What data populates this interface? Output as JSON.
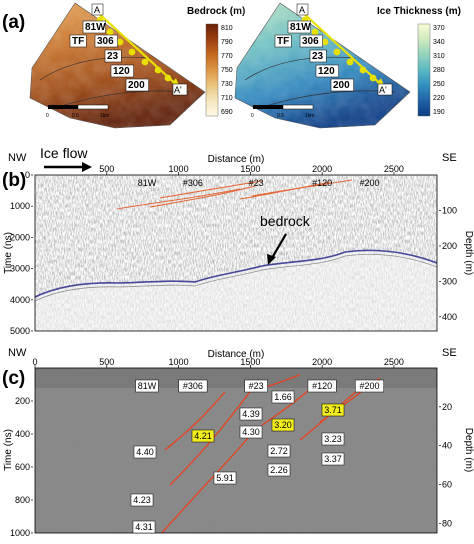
{
  "panel_a": {
    "label": "(a)",
    "map_labels": {
      "top": "A",
      "bottom": "A'"
    },
    "site_labels": [
      "81W",
      "TF",
      "306",
      "23",
      "120",
      "200"
    ],
    "scalebar": {
      "ticks": [
        "0",
        "0.5",
        "1km"
      ]
    },
    "bedrock": {
      "title": "Bedrock (m)",
      "ticks": [
        "810",
        "790",
        "770",
        "750",
        "730",
        "710",
        "690"
      ],
      "colors": [
        "#6b2208",
        "#9b3f12",
        "#c46a1f",
        "#dc9844",
        "#e9c57f",
        "#f5e7bf",
        "#fff8e6"
      ]
    },
    "ice": {
      "title": "Ice Thickness (m)",
      "ticks": [
        "370",
        "340",
        "310",
        "280",
        "250",
        "220",
        "190"
      ],
      "colors": [
        "#f8fbd8",
        "#cfeac0",
        "#94d3bd",
        "#5ab9c2",
        "#3190c0",
        "#1f63a6",
        "#0d3d82"
      ]
    }
  },
  "panel_b": {
    "label": "(b)",
    "nw": "NW",
    "se": "SE",
    "ice_flow": "Ice flow",
    "xlabel": "Distance (m)",
    "x_ticks": [
      "500",
      "1000",
      "1500",
      "2000",
      "2500"
    ],
    "ylabel": "Time (ns)",
    "y_ticks": [
      "0",
      "1000",
      "2000",
      "3000",
      "4000",
      "5000"
    ],
    "y2label": "Depth (m)",
    "y2_ticks": [
      "100",
      "200",
      "300",
      "400"
    ],
    "sites": [
      "81W",
      "#306",
      "#23",
      "#120",
      "#200"
    ],
    "bedrock_label": "bedrock"
  },
  "panel_c": {
    "label": "(c)",
    "nw": "NW",
    "se": "SE",
    "xlabel": "Distance (m)",
    "x_ticks": [
      "0",
      "500",
      "1000",
      "1500",
      "2000",
      "2500"
    ],
    "ylabel": "Time (ns)",
    "y_ticks": [
      "200",
      "400",
      "600",
      "800",
      "1000"
    ],
    "y2label": "Depth (m)",
    "y2_ticks": [
      "20",
      "40",
      "60",
      "80"
    ],
    "sites": [
      "81W",
      "#306",
      "#23",
      "#120",
      "#200"
    ],
    "layer_values": [
      {
        "v": "4.40",
        "hl": false
      },
      {
        "v": "4.21",
        "hl": true
      },
      {
        "v": "4.23",
        "hl": false
      },
      {
        "v": "4.31",
        "hl": false
      },
      {
        "v": "4.39",
        "hl": false
      },
      {
        "v": "4.30",
        "hl": false
      },
      {
        "v": "5.91",
        "hl": false
      },
      {
        "v": "1.66",
        "hl": false
      },
      {
        "v": "3.20",
        "hl": true
      },
      {
        "v": "2.72",
        "hl": false
      },
      {
        "v": "2.26",
        "hl": false
      },
      {
        "v": "3.71",
        "hl": true
      },
      {
        "v": "3.23",
        "hl": false
      },
      {
        "v": "3.37",
        "hl": false
      }
    ]
  }
}
